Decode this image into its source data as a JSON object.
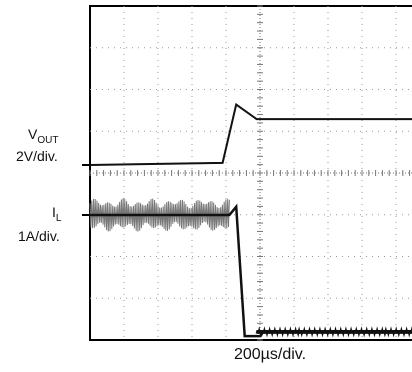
{
  "chart_data": {
    "type": "line",
    "grid": true,
    "x_label": "200µs/div.",
    "series": [
      {
        "label_main": "V",
        "label_sub": "OUT",
        "scale": "2V/div.",
        "color": "#111111",
        "points": [
          [
            0,
            0
          ],
          [
            3.9,
            0.05
          ],
          [
            4.3,
            1.45
          ],
          [
            4.9,
            1.1
          ],
          [
            10,
            1.1
          ]
        ]
      },
      {
        "label_main": "I",
        "label_sub": "L",
        "scale": "1A/div.",
        "color": "#111111",
        "ripple_color": "#777777",
        "points": [
          [
            0,
            0
          ],
          [
            4.1,
            0
          ],
          [
            4.3,
            0.2
          ],
          [
            4.55,
            -2.9
          ],
          [
            5.0,
            -2.9
          ],
          [
            5.1,
            -2.8
          ],
          [
            10,
            -2.8
          ]
        ],
        "ripple_until": 4.1,
        "ripple_amplitude": 0.35
      }
    ]
  }
}
